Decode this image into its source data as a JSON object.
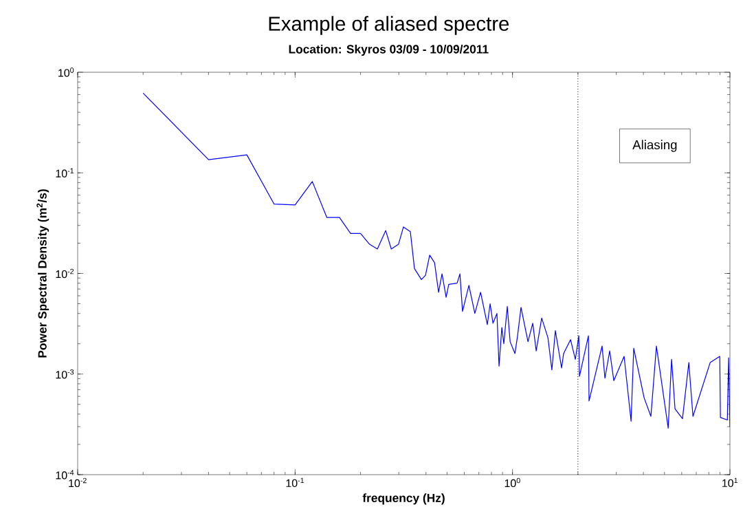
{
  "chart_data": {
    "type": "line",
    "title": "Example of aliased spectre",
    "subtitle": "Location: Skyros 03/09 - 10/09/2011",
    "xlabel": "frequency (Hz)",
    "ylabel": "Power Spectral Density (m$^{2}$/s)",
    "log": "xy",
    "grid": false,
    "marker": "none",
    "line_style": "solid",
    "xlim": [
      0.01,
      10
    ],
    "ylim": [
      0.0001,
      1
    ],
    "xticks": [
      {
        "value": 0.01,
        "label": "10$^{-2}$"
      },
      {
        "value": 0.1,
        "label": "10$^{-1}$"
      },
      {
        "value": 1,
        "label": "10$^{0}$"
      },
      {
        "value": 10,
        "label": "10$^{1}$"
      }
    ],
    "yticks": [
      {
        "value": 0.0001,
        "label": "10$^{-4}$"
      },
      {
        "value": 0.001,
        "label": "10$^{-3}$"
      },
      {
        "value": 0.01,
        "label": "10$^{-2}$"
      },
      {
        "value": 0.1,
        "label": "10$^{-1}$"
      },
      {
        "value": 1,
        "label": "10$^{0}$"
      }
    ],
    "ref_lines": [
      {
        "axis": "x",
        "value": 2,
        "color": "#000000",
        "line_style": "dotted"
      }
    ],
    "annotations": [
      "Aliasing"
    ],
    "series": [
      {
        "color": "#0000ff",
        "x": [
          0.02,
          0.04,
          0.06,
          0.08,
          0.1,
          0.12,
          0.14,
          0.16,
          0.18,
          0.2,
          0.22,
          0.239,
          0.261,
          0.277,
          0.299,
          0.315,
          0.339,
          0.354,
          0.381,
          0.398,
          0.416,
          0.438,
          0.457,
          0.474,
          0.495,
          0.509,
          0.556,
          0.573,
          0.589,
          0.63,
          0.671,
          0.713,
          0.766,
          0.789,
          0.813,
          0.848,
          0.867,
          0.893,
          0.912,
          0.946,
          0.975,
          1.026,
          1.055,
          1.094,
          1.178,
          1.239,
          1.285,
          1.362,
          1.455,
          1.517,
          1.574,
          1.682,
          1.718,
          1.849,
          1.945,
          2.018,
          2.032,
          2.234,
          2.249,
          2.582,
          2.661,
          2.799,
          2.924,
          3.26,
          3.51,
          3.61,
          4.03,
          4.33,
          4.59,
          5.2,
          5.39,
          5.59,
          6.05,
          6.47,
          6.76,
          8.11,
          8.98,
          9.04,
          9.73,
          9.86,
          10
        ],
        "values": [
          0.62,
          0.135,
          0.151,
          0.049,
          0.048,
          0.082,
          0.036,
          0.036,
          0.025,
          0.025,
          0.0195,
          0.0175,
          0.0267,
          0.0175,
          0.0195,
          0.029,
          0.026,
          0.0112,
          0.0087,
          0.0096,
          0.0152,
          0.0128,
          0.0065,
          0.0099,
          0.0058,
          0.0078,
          0.008,
          0.0099,
          0.0042,
          0.0076,
          0.004,
          0.0065,
          0.0031,
          0.005,
          0.0032,
          0.004,
          0.0012,
          0.0029,
          0.002,
          0.0047,
          0.0021,
          0.0016,
          0.0024,
          0.0046,
          0.0021,
          0.0032,
          0.0017,
          0.0036,
          0.0023,
          0.0011,
          0.0027,
          0.00115,
          0.0016,
          0.0022,
          0.0014,
          0.0024,
          0.00095,
          0.0024,
          0.00054,
          0.0019,
          0.00091,
          0.0017,
          0.00086,
          0.0015,
          0.00034,
          0.0018,
          0.00058,
          0.00038,
          0.0019,
          0.00029,
          0.0014,
          0.00045,
          0.00036,
          0.0013,
          0.00038,
          0.0013,
          0.0015,
          0.00037,
          0.00035,
          0.00145,
          0.0003
        ]
      }
    ]
  }
}
